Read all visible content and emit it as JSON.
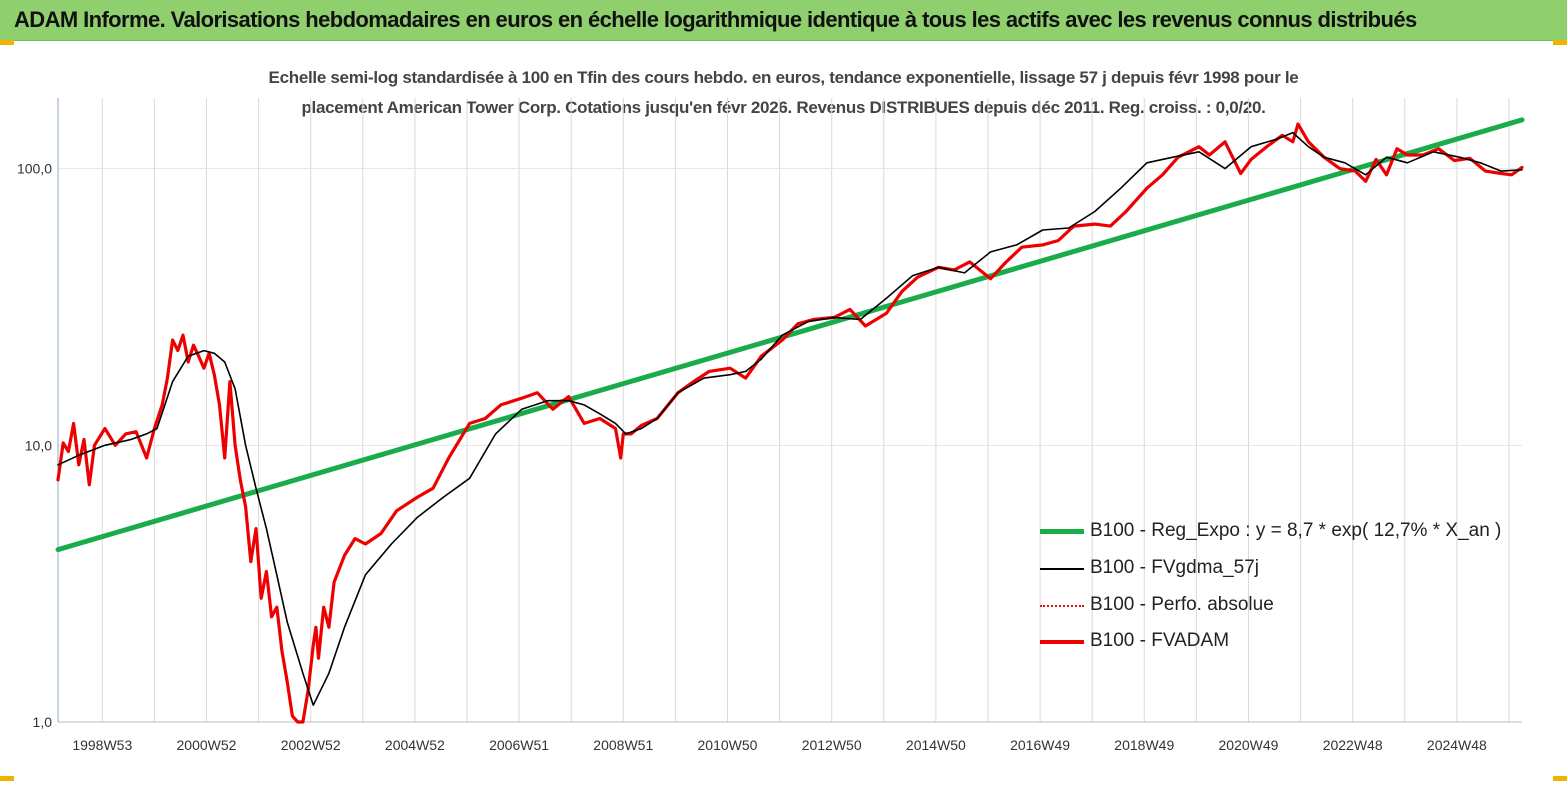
{
  "header": {
    "title": "ADAM Informe. Valorisations hebdomadaires en euros en échelle logarithmique identique à tous les actifs avec les revenus connus distribués"
  },
  "colors": {
    "banner": "#8fcf6e",
    "corner_marks": "#f0b400",
    "regression": "#1aab4b",
    "smoothed": "#000000",
    "absolute": "#e01010",
    "fvadam": "#ee0000",
    "gridline": "#d9d9d9"
  },
  "chart_data": {
    "type": "line",
    "title_line1": "Echelle semi-log standardisée à 100 en Tfin des cours hebdo. en euros, tendance exponentielle, lissage 57 j depuis févr 1998 pour le",
    "title_line2": "placement American Tower Corp. Cotations jusqu'en févr 2026. Revenus DISTRIBUES  depuis déc 2011. Reg.  croiss. : 0,0/20.",
    "y_scale": "log",
    "ylim": [
      1,
      180
    ],
    "y_ticks": [
      1,
      10,
      100
    ],
    "y_tick_labels": [
      "1,0",
      "10,0",
      "100,0"
    ],
    "xlim": [
      1998.1,
      2026.2
    ],
    "x_ticks": [
      1998.95,
      2000.95,
      2002.95,
      2004.95,
      2006.95,
      2008.95,
      2010.95,
      2012.95,
      2014.95,
      2016.95,
      2018.95,
      2020.95,
      2022.95,
      2024.95
    ],
    "x_tick_labels": [
      "1998W53",
      "2000W52",
      "2002W52",
      "2004W52",
      "2006W51",
      "2008W51",
      "2010W50",
      "2012W50",
      "2014W50",
      "2016W49",
      "2018W49",
      "2020W49",
      "2022W48",
      "2024W48"
    ],
    "grid": "vertical",
    "legend_position": "bottom-right",
    "series": [
      {
        "name": "B100 - Reg_Expo : y = 8,7 * exp( 12,7% *  X_an )",
        "style": "thick-green",
        "x": [
          1998.1,
          2026.2
        ],
        "y": [
          4.2,
          150
        ]
      },
      {
        "name": "B100 - FVgdma_57j",
        "style": "thin-black",
        "x": [
          1998.1,
          1998.5,
          1999.0,
          1999.5,
          1999.8,
          2000.0,
          2000.3,
          2000.6,
          2000.9,
          2001.1,
          2001.3,
          2001.5,
          2001.7,
          2001.9,
          2002.1,
          2002.3,
          2002.5,
          2002.8,
          2003.0,
          2003.3,
          2003.6,
          2004.0,
          2004.5,
          2005.0,
          2005.5,
          2006.0,
          2006.5,
          2007.0,
          2007.5,
          2007.9,
          2008.2,
          2008.5,
          2008.8,
          2009.0,
          2009.3,
          2009.6,
          2010.0,
          2010.5,
          2011.0,
          2011.3,
          2011.6,
          2012.0,
          2012.5,
          2013.0,
          2013.5,
          2014.0,
          2014.5,
          2015.0,
          2015.5,
          2016.0,
          2016.5,
          2017.0,
          2017.5,
          2018.0,
          2018.5,
          2019.0,
          2019.5,
          2020.0,
          2020.5,
          2021.0,
          2021.5,
          2021.8,
          2022.1,
          2022.4,
          2022.8,
          2023.2,
          2023.6,
          2024.0,
          2024.5,
          2025.0,
          2025.4,
          2025.8,
          2026.2
        ],
        "y": [
          8.5,
          9.2,
          10.0,
          10.5,
          11.0,
          11.5,
          17.0,
          21.0,
          22.0,
          21.5,
          20.0,
          16.0,
          10.0,
          7.0,
          5.0,
          3.4,
          2.3,
          1.5,
          1.15,
          1.5,
          2.2,
          3.4,
          4.4,
          5.5,
          6.5,
          7.6,
          11.0,
          13.5,
          14.5,
          14.5,
          14.0,
          13.0,
          12.0,
          11.0,
          11.5,
          12.5,
          15.5,
          17.5,
          18.0,
          18.5,
          20.5,
          25.0,
          28.0,
          29.0,
          28.5,
          34.0,
          41.0,
          44.0,
          42.0,
          50.0,
          53.0,
          60.0,
          61.0,
          70.0,
          85.0,
          105.0,
          110.0,
          115.0,
          100.0,
          120.0,
          128.0,
          135.0,
          120.0,
          110.0,
          105.0,
          95.0,
          110.0,
          105.0,
          115.0,
          110.0,
          105.0,
          98.0,
          99.0
        ]
      },
      {
        "name": "B100 - Perfo. absolue",
        "style": "dotted-red",
        "x": [],
        "y": []
      },
      {
        "name": "B100 - FVADAM",
        "style": "thick-red",
        "x": [
          1998.1,
          1998.2,
          1998.3,
          1998.4,
          1998.5,
          1998.6,
          1998.7,
          1998.8,
          1999.0,
          1999.2,
          1999.4,
          1999.6,
          1999.8,
          1999.95,
          2000.1,
          2000.2,
          2000.3,
          2000.4,
          2000.5,
          2000.6,
          2000.7,
          2000.8,
          2000.9,
          2001.0,
          2001.1,
          2001.2,
          2001.3,
          2001.4,
          2001.5,
          2001.6,
          2001.7,
          2001.8,
          2001.9,
          2002.0,
          2002.1,
          2002.2,
          2002.3,
          2002.4,
          2002.5,
          2002.6,
          2002.7,
          2002.8,
          2002.9,
          2003.0,
          2003.05,
          2003.1,
          2003.2,
          2003.3,
          2003.4,
          2003.6,
          2003.8,
          2004.0,
          2004.3,
          2004.6,
          2005.0,
          2005.3,
          2005.6,
          2006.0,
          2006.3,
          2006.6,
          2007.0,
          2007.3,
          2007.6,
          2007.9,
          2008.2,
          2008.5,
          2008.8,
          2008.9,
          2008.95,
          2009.1,
          2009.3,
          2009.6,
          2010.0,
          2010.3,
          2010.6,
          2011.0,
          2011.3,
          2011.6,
          2012.0,
          2012.3,
          2012.6,
          2013.0,
          2013.3,
          2013.6,
          2014.0,
          2014.3,
          2014.6,
          2015.0,
          2015.3,
          2015.6,
          2016.0,
          2016.3,
          2016.6,
          2017.0,
          2017.3,
          2017.6,
          2018.0,
          2018.3,
          2018.6,
          2019.0,
          2019.3,
          2019.6,
          2020.0,
          2020.2,
          2020.5,
          2020.8,
          2021.0,
          2021.3,
          2021.6,
          2021.8,
          2021.9,
          2022.1,
          2022.4,
          2022.7,
          2023.0,
          2023.2,
          2023.4,
          2023.6,
          2023.8,
          2024.0,
          2024.3,
          2024.6,
          2024.9,
          2025.2,
          2025.5,
          2025.8,
          2026.0,
          2026.2
        ],
        "y": [
          7.5,
          10.2,
          9.5,
          12.0,
          8.5,
          10.5,
          7.2,
          10.0,
          11.5,
          10.0,
          11.0,
          11.2,
          9.0,
          11.5,
          14.0,
          17.5,
          24.0,
          22.0,
          25.0,
          20.0,
          23.0,
          21.0,
          19.0,
          21.5,
          18.0,
          14.0,
          9.0,
          17.0,
          10.0,
          7.5,
          6.0,
          3.8,
          5.0,
          2.8,
          3.5,
          2.4,
          2.6,
          1.8,
          1.4,
          1.05,
          0.95,
          0.9,
          1.3,
          1.9,
          2.2,
          1.7,
          2.6,
          2.2,
          3.2,
          4.0,
          4.6,
          4.4,
          4.8,
          5.8,
          6.5,
          7.0,
          9.0,
          12.0,
          12.5,
          14.0,
          14.8,
          15.5,
          13.5,
          15.0,
          12.0,
          12.5,
          11.5,
          9.0,
          11.0,
          11.0,
          11.8,
          12.5,
          15.5,
          17.0,
          18.5,
          19.0,
          17.5,
          21.0,
          24.0,
          27.5,
          28.5,
          29.0,
          31.0,
          27.0,
          30.0,
          36.0,
          40.5,
          44.0,
          43.0,
          46.0,
          40.0,
          46.0,
          52.0,
          53.0,
          55.0,
          62.0,
          63.0,
          62.0,
          70.0,
          85.0,
          95.0,
          110.0,
          120.0,
          112.0,
          125.0,
          96.0,
          108.0,
          120.0,
          132.0,
          125.0,
          145.0,
          125.0,
          110.0,
          100.0,
          98.0,
          90.0,
          108.0,
          95.0,
          118.0,
          112.0,
          112.0,
          118.0,
          107.0,
          109.0,
          98.0,
          96.0,
          95.0,
          101.0
        ]
      }
    ]
  }
}
